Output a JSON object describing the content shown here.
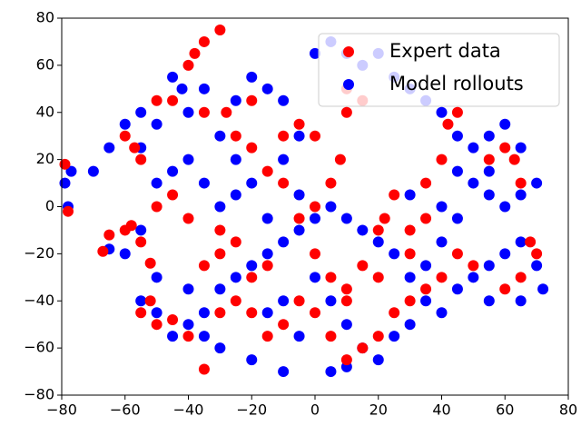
{
  "chart_data": {
    "type": "scatter",
    "xlim": [
      -80,
      80
    ],
    "ylim": [
      -80,
      80
    ],
    "xticks": [
      {
        "value": -80,
        "label": "−80"
      },
      {
        "value": -60,
        "label": "−60"
      },
      {
        "value": -40,
        "label": "−40"
      },
      {
        "value": -20,
        "label": "−20"
      },
      0,
      20,
      40,
      60,
      80
    ],
    "yticks": [
      {
        "value": -80,
        "label": "−80"
      },
      {
        "value": -60,
        "label": "−60"
      },
      {
        "value": -40,
        "label": "−40"
      },
      {
        "value": -20,
        "label": "−20"
      },
      0,
      20,
      40,
      60,
      80
    ],
    "legend": "upper right",
    "series": [
      {
        "name": "Expert data",
        "color": "#ff0000",
        "x": [
          -79,
          -78,
          -67,
          -65,
          -60,
          -58,
          -55,
          -52,
          -57,
          -60,
          -55,
          -50,
          -45,
          -40,
          -38,
          -35,
          -30,
          -28,
          -25,
          -20,
          -15,
          -10,
          -5,
          0,
          5,
          8,
          10,
          15,
          20,
          22,
          25,
          30,
          35,
          40,
          42,
          45,
          55,
          60,
          63,
          65,
          68,
          70,
          65,
          60,
          50,
          45,
          40,
          35,
          30,
          25,
          20,
          15,
          10,
          5,
          0,
          -5,
          -10,
          -15,
          -20,
          -25,
          -30,
          -35,
          -40,
          -45,
          -50,
          -52,
          -55,
          -35,
          -30,
          -25,
          -20,
          -15,
          0,
          5,
          10,
          15,
          20,
          10,
          -30,
          -40,
          -45,
          -50,
          -35,
          -20,
          10,
          30,
          35,
          -10,
          -5,
          0
        ],
        "values": [
          18,
          -2,
          -19,
          -12,
          -10,
          -8,
          -15,
          -24,
          25,
          30,
          20,
          45,
          45,
          60,
          65,
          70,
          75,
          40,
          30,
          25,
          15,
          10,
          -5,
          0,
          10,
          20,
          40,
          45,
          -10,
          -5,
          5,
          -10,
          10,
          20,
          35,
          40,
          20,
          25,
          20,
          10,
          -15,
          -20,
          -30,
          -35,
          -25,
          -20,
          -30,
          -35,
          -40,
          -45,
          -55,
          -60,
          -65,
          -55,
          -45,
          -40,
          -50,
          -55,
          -45,
          -40,
          -45,
          -69,
          -55,
          -48,
          -50,
          -40,
          -45,
          -25,
          -20,
          -15,
          -30,
          -25,
          -20,
          -30,
          -35,
          -25,
          -30,
          -40,
          -10,
          -5,
          5,
          0,
          40,
          45,
          50,
          -20,
          -5,
          30,
          35,
          30
        ]
      },
      {
        "name": "Model rollouts",
        "color": "#0000ff",
        "x": [
          -79,
          -78,
          -77,
          -55,
          -50,
          -45,
          -42,
          -40,
          -35,
          -30,
          -25,
          -20,
          -15,
          -10,
          -5,
          0,
          5,
          10,
          15,
          20,
          25,
          30,
          35,
          40,
          45,
          50,
          55,
          60,
          65,
          70,
          65,
          60,
          55,
          50,
          45,
          40,
          35,
          30,
          25,
          20,
          15,
          10,
          5,
          0,
          -5,
          -10,
          -15,
          -20,
          -25,
          -30,
          -35,
          -40,
          -45,
          -50,
          -55,
          -50,
          -40,
          -60,
          -65,
          -55,
          -50,
          -45,
          -40,
          -35,
          -30,
          -25,
          -20,
          -15,
          -10,
          -5,
          0,
          5,
          10,
          15,
          20,
          25,
          30,
          35,
          40,
          45,
          50,
          55,
          60,
          65,
          70,
          72,
          65,
          55,
          5,
          10,
          -20,
          -10,
          -30,
          -35,
          -25,
          30,
          40,
          45,
          55,
          -70,
          -65,
          -60,
          -55,
          -10,
          -15,
          -5
        ],
        "values": [
          10,
          0,
          15,
          40,
          35,
          55,
          50,
          40,
          50,
          30,
          45,
          55,
          50,
          45,
          30,
          65,
          70,
          65,
          60,
          65,
          55,
          50,
          45,
          40,
          30,
          25,
          30,
          35,
          25,
          10,
          5,
          0,
          5,
          10,
          -5,
          -15,
          -25,
          -30,
          -20,
          -15,
          -10,
          -5,
          0,
          -5,
          -10,
          -15,
          -20,
          -25,
          -30,
          -35,
          -45,
          -50,
          -55,
          -45,
          -40,
          -30,
          -35,
          -20,
          -18,
          -10,
          10,
          15,
          20,
          10,
          0,
          5,
          10,
          -5,
          20,
          5,
          -30,
          -40,
          -50,
          -60,
          -65,
          -55,
          -50,
          -40,
          -45,
          -35,
          -30,
          -25,
          -20,
          -15,
          -25,
          -35,
          -40,
          -40,
          -70,
          -68,
          -65,
          -70,
          -60,
          -55,
          20,
          5,
          0,
          15,
          15,
          15,
          25,
          35,
          25,
          -40,
          -45,
          -55
        ]
      }
    ]
  }
}
